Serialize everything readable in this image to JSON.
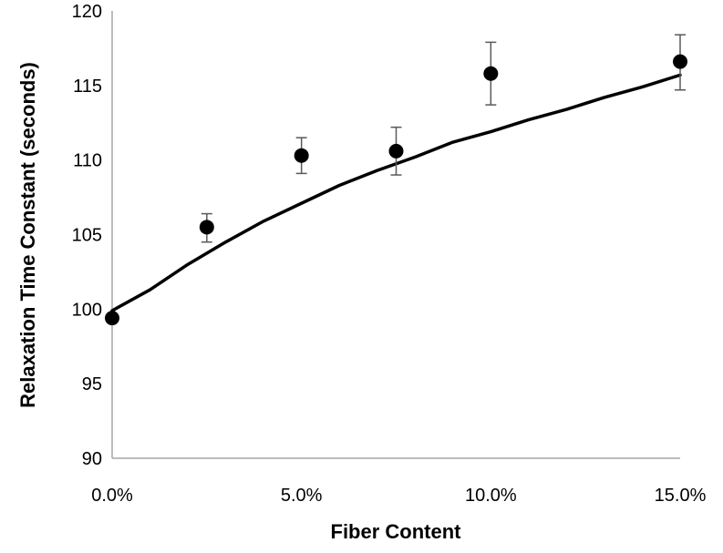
{
  "chart_data": {
    "type": "scatter",
    "xlabel": "Fiber Content",
    "ylabel": "Relaxation Time Constant (seconds)",
    "xlim": [
      0,
      15
    ],
    "ylim": [
      90,
      120
    ],
    "x_ticks": [
      {
        "value": 0,
        "label": "0.0%"
      },
      {
        "value": 5,
        "label": "5.0%"
      },
      {
        "value": 10,
        "label": "10.0%"
      },
      {
        "value": 15,
        "label": "15.0%"
      }
    ],
    "y_ticks": [
      {
        "value": 90,
        "label": "90"
      },
      {
        "value": 95,
        "label": "95"
      },
      {
        "value": 100,
        "label": "100"
      },
      {
        "value": 105,
        "label": "105"
      },
      {
        "value": 110,
        "label": "110"
      },
      {
        "value": 115,
        "label": "115"
      },
      {
        "value": 120,
        "label": "120"
      }
    ],
    "grid": false,
    "legend": "none",
    "series": [
      {
        "type": "scatter",
        "points": [
          {
            "x": 0.0,
            "y": 99.4,
            "err_low": 0.0,
            "err_high": 0.0
          },
          {
            "x": 2.5,
            "y": 105.5,
            "err_low": 1.0,
            "err_high": 0.9
          },
          {
            "x": 5.0,
            "y": 110.3,
            "err_low": 1.2,
            "err_high": 1.2
          },
          {
            "x": 7.5,
            "y": 110.6,
            "err_low": 1.6,
            "err_high": 1.6
          },
          {
            "x": 10.0,
            "y": 115.8,
            "err_low": 2.1,
            "err_high": 2.1
          },
          {
            "x": 15.0,
            "y": 116.6,
            "err_low": 1.9,
            "err_high": 1.8
          }
        ],
        "color": "#000000"
      },
      {
        "type": "line",
        "points": [
          {
            "x": 0,
            "y": 99.9
          },
          {
            "x": 1,
            "y": 101.3
          },
          {
            "x": 2,
            "y": 103.0
          },
          {
            "x": 3,
            "y": 104.5
          },
          {
            "x": 4,
            "y": 105.9
          },
          {
            "x": 5,
            "y": 107.1
          },
          {
            "x": 6,
            "y": 108.3
          },
          {
            "x": 7,
            "y": 109.3
          },
          {
            "x": 8,
            "y": 110.2
          },
          {
            "x": 9,
            "y": 111.2
          },
          {
            "x": 10,
            "y": 111.9
          },
          {
            "x": 11,
            "y": 112.7
          },
          {
            "x": 12,
            "y": 113.4
          },
          {
            "x": 13,
            "y": 114.2
          },
          {
            "x": 14,
            "y": 114.9
          },
          {
            "x": 15,
            "y": 115.7
          }
        ],
        "color": "#000000"
      }
    ]
  }
}
